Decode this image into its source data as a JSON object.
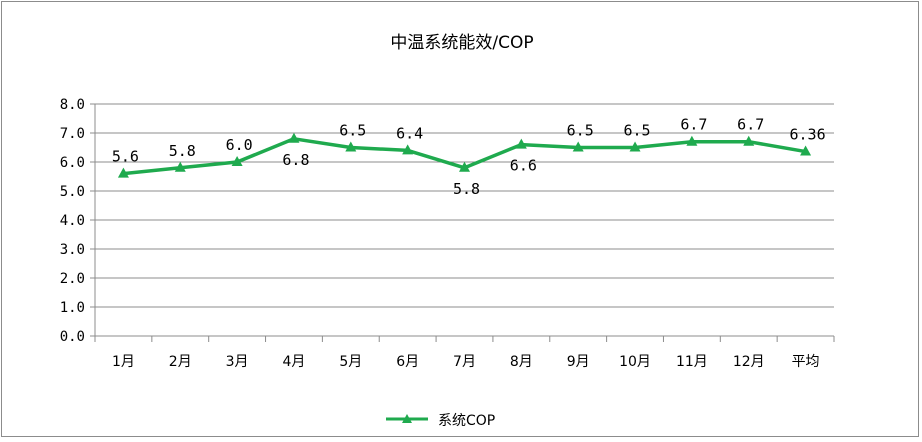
{
  "chart_data": {
    "type": "line",
    "title": "中温系统能效/COP",
    "xlabel": "",
    "ylabel": "",
    "categories": [
      "1月",
      "2月",
      "3月",
      "4月",
      "5月",
      "6月",
      "7月",
      "8月",
      "9月",
      "10月",
      "11月",
      "12月",
      "平均"
    ],
    "series": [
      {
        "name": "系统COP",
        "values": [
          5.6,
          5.8,
          6.0,
          6.8,
          6.5,
          6.4,
          5.8,
          6.6,
          6.5,
          6.5,
          6.7,
          6.7,
          6.36
        ],
        "labels": [
          "5.6",
          "5.8",
          "6.0",
          "6.8",
          "6.5",
          "6.4",
          "5.8",
          "6.6",
          "6.5",
          "6.5",
          "6.7",
          "6.7",
          "6.36"
        ],
        "color": "#1faa4e",
        "marker": "triangle"
      }
    ],
    "yticks": [
      "0.0",
      "1.0",
      "2.0",
      "3.0",
      "4.0",
      "5.0",
      "6.0",
      "7.0",
      "8.0"
    ],
    "ylim": [
      0,
      8
    ],
    "grid": true,
    "legend_position": "bottom"
  }
}
